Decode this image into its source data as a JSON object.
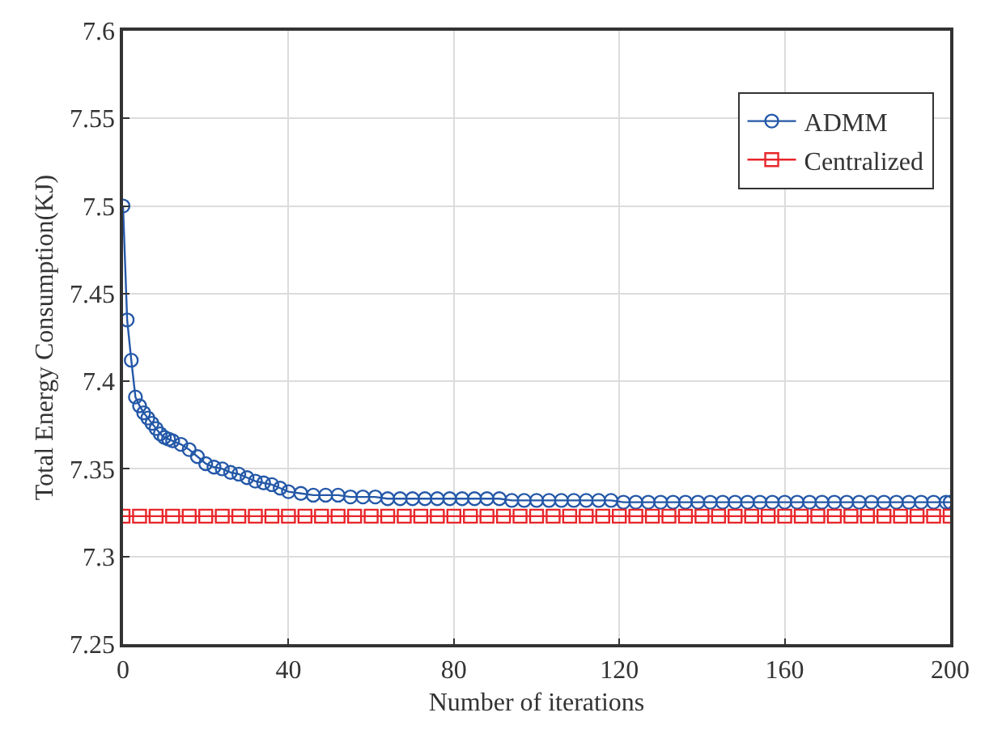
{
  "chart_data": {
    "type": "line",
    "xlabel": "Number of iterations",
    "ylabel": "Total Energy Consumption(KJ)",
    "xlim": [
      0,
      200
    ],
    "xticks": [
      0,
      40,
      80,
      120,
      160,
      200
    ],
    "ylim": [
      7.25,
      7.6
    ],
    "yticks": [
      7.25,
      7.3,
      7.35,
      7.4,
      7.45,
      7.5,
      7.55,
      7.6
    ],
    "grid": true,
    "legend": "top right",
    "series": [
      {
        "name": "ADMM",
        "color": "#2458a8",
        "marker": "circle",
        "x": [
          0,
          1,
          2,
          3,
          4,
          5,
          6,
          7,
          8,
          9,
          10,
          11,
          12,
          14,
          16,
          18,
          20,
          22,
          24,
          26,
          28,
          30,
          32,
          34,
          36,
          38,
          40,
          43,
          46,
          49,
          52,
          55,
          58,
          61,
          64,
          67,
          70,
          73,
          76,
          79,
          82,
          85,
          88,
          91,
          94,
          97,
          100,
          103,
          106,
          109,
          112,
          115,
          118,
          121,
          124,
          127,
          130,
          133,
          136,
          139,
          142,
          145,
          148,
          151,
          154,
          157,
          160,
          163,
          166,
          169,
          172,
          175,
          178,
          181,
          184,
          187,
          190,
          193,
          196,
          199,
          200
        ],
        "values": [
          7.5,
          7.435,
          7.412,
          7.391,
          7.386,
          7.382,
          7.379,
          7.376,
          7.373,
          7.37,
          7.368,
          7.367,
          7.366,
          7.364,
          7.361,
          7.357,
          7.353,
          7.351,
          7.35,
          7.348,
          7.347,
          7.345,
          7.343,
          7.342,
          7.341,
          7.339,
          7.337,
          7.336,
          7.335,
          7.335,
          7.335,
          7.334,
          7.334,
          7.334,
          7.333,
          7.333,
          7.333,
          7.333,
          7.333,
          7.333,
          7.333,
          7.333,
          7.333,
          7.333,
          7.332,
          7.332,
          7.332,
          7.332,
          7.332,
          7.332,
          7.332,
          7.332,
          7.332,
          7.331,
          7.331,
          7.331,
          7.331,
          7.331,
          7.331,
          7.331,
          7.331,
          7.331,
          7.331,
          7.331,
          7.331,
          7.331,
          7.331,
          7.331,
          7.331,
          7.331,
          7.331,
          7.331,
          7.331,
          7.331,
          7.331,
          7.331,
          7.331,
          7.331,
          7.331,
          7.331,
          7.331
        ]
      },
      {
        "name": "Centralized",
        "color": "#e8262a",
        "marker": "square",
        "x": [
          0,
          4,
          8,
          12,
          16,
          20,
          24,
          28,
          32,
          36,
          40,
          44,
          48,
          52,
          56,
          60,
          64,
          68,
          72,
          76,
          80,
          84,
          88,
          92,
          96,
          100,
          104,
          108,
          112,
          116,
          120,
          124,
          128,
          132,
          136,
          140,
          144,
          148,
          152,
          156,
          160,
          164,
          168,
          172,
          176,
          180,
          184,
          188,
          192,
          196,
          200
        ],
        "values": [
          7.323,
          7.323,
          7.323,
          7.323,
          7.323,
          7.323,
          7.323,
          7.323,
          7.323,
          7.323,
          7.323,
          7.323,
          7.323,
          7.323,
          7.323,
          7.323,
          7.323,
          7.323,
          7.323,
          7.323,
          7.323,
          7.323,
          7.323,
          7.323,
          7.323,
          7.323,
          7.323,
          7.323,
          7.323,
          7.323,
          7.323,
          7.323,
          7.323,
          7.323,
          7.323,
          7.323,
          7.323,
          7.323,
          7.323,
          7.323,
          7.323,
          7.323,
          7.323,
          7.323,
          7.323,
          7.323,
          7.323,
          7.323,
          7.323,
          7.323,
          7.323
        ]
      }
    ]
  }
}
